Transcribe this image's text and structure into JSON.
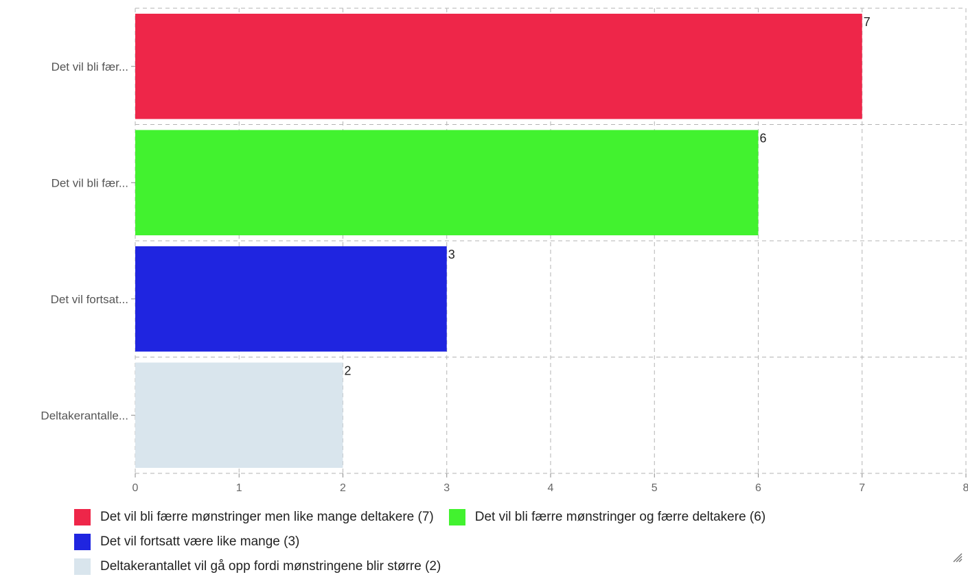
{
  "chart_data": {
    "type": "bar",
    "orientation": "horizontal",
    "categories": [
      "Det vil bli fær...",
      "Det vil bli fær...",
      "Det vil fortsat...",
      "Deltakerantalle..."
    ],
    "values": [
      7,
      6,
      3,
      2
    ],
    "value_labels": [
      "7",
      "6",
      "3",
      "2"
    ],
    "colors": [
      "#ee2649",
      "#42f22f",
      "#1f25e0",
      "#d9e5ed"
    ],
    "xlim": [
      0,
      8
    ],
    "xticks": [
      "0",
      "1",
      "2",
      "3",
      "4",
      "5",
      "6",
      "7",
      "8"
    ],
    "grid": true,
    "grid_style": "dashed",
    "legend_position": "bottom",
    "legend": [
      {
        "label": "Det vil bli færre mønstringer men like mange deltakere (7)",
        "color": "#ee2649"
      },
      {
        "label": "Det vil bli færre mønstringer og færre deltakere (6)",
        "color": "#42f22f"
      },
      {
        "label": "Det vil fortsatt være like mange (3)",
        "color": "#1f25e0"
      },
      {
        "label": "Deltakerantallet vil gå opp fordi mønstringene blir større (2)",
        "color": "#d9e5ed"
      }
    ]
  },
  "icons": {
    "resize": "resize-grip-icon"
  }
}
